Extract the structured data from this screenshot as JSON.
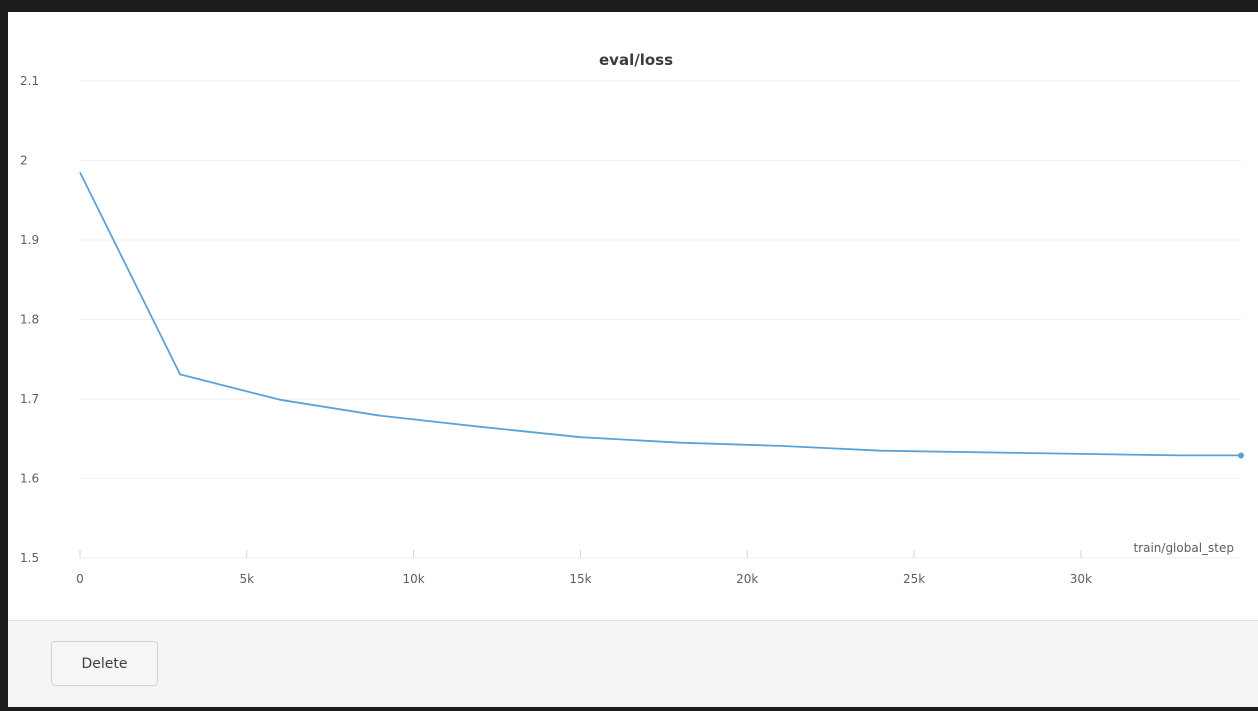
{
  "footer": {
    "delete_label": "Delete"
  },
  "chart_data": {
    "type": "line",
    "title": "eval/loss",
    "xlabel": "train/global_step",
    "ylabel": "",
    "xlim": [
      0,
      34800
    ],
    "ylim": [
      1.5,
      2.1
    ],
    "x_ticks": [
      0,
      5000,
      10000,
      15000,
      20000,
      25000,
      30000
    ],
    "x_tick_labels": [
      "0",
      "5k",
      "10k",
      "15k",
      "20k",
      "25k",
      "30k"
    ],
    "y_ticks": [
      1.5,
      1.6,
      1.7,
      1.8,
      1.9,
      2.0,
      2.1
    ],
    "y_tick_labels": [
      "1.5",
      "1.6",
      "1.7",
      "1.8",
      "1.9",
      "2",
      "2.1"
    ],
    "grid": true,
    "series": [
      {
        "color": "#5aa3d9",
        "x": [
          0,
          3000,
          6000,
          9000,
          12000,
          15000,
          18000,
          21000,
          24000,
          27000,
          30000,
          33000,
          34800
        ],
        "y": [
          1.985,
          1.731,
          1.699,
          1.679,
          1.665,
          1.652,
          1.645,
          1.641,
          1.635,
          1.633,
          1.631,
          1.629,
          1.629
        ]
      }
    ]
  }
}
